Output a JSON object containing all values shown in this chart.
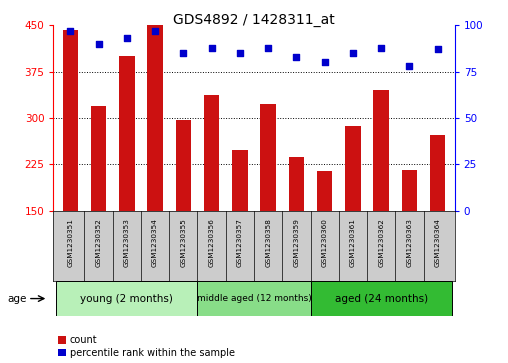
{
  "title": "GDS4892 / 1428311_at",
  "samples": [
    "GSM1230351",
    "GSM1230352",
    "GSM1230353",
    "GSM1230354",
    "GSM1230355",
    "GSM1230356",
    "GSM1230357",
    "GSM1230358",
    "GSM1230359",
    "GSM1230360",
    "GSM1230361",
    "GSM1230362",
    "GSM1230363",
    "GSM1230364"
  ],
  "counts": [
    442,
    320,
    400,
    450,
    297,
    337,
    248,
    323,
    237,
    214,
    287,
    345,
    215,
    272
  ],
  "percentiles": [
    97,
    90,
    93,
    97,
    85,
    88,
    85,
    88,
    83,
    80,
    85,
    88,
    78,
    87
  ],
  "groups": [
    {
      "label": "young (2 months)",
      "start": 0,
      "end": 5,
      "color": "#b8f0b8"
    },
    {
      "label": "middle aged (12 months)",
      "start": 5,
      "end": 9,
      "color": "#88dd88"
    },
    {
      "label": "aged (24 months)",
      "start": 9,
      "end": 14,
      "color": "#33bb33"
    }
  ],
  "ylim_left": [
    150,
    450
  ],
  "ylim_right": [
    0,
    100
  ],
  "yticks_left": [
    150,
    225,
    300,
    375,
    450
  ],
  "yticks_right": [
    0,
    25,
    50,
    75,
    100
  ],
  "bar_color": "#cc1111",
  "dot_color": "#0000cc",
  "plot_bg": "#ffffff",
  "label_bg": "#cccccc",
  "gridline_vals": [
    225,
    300,
    375
  ]
}
